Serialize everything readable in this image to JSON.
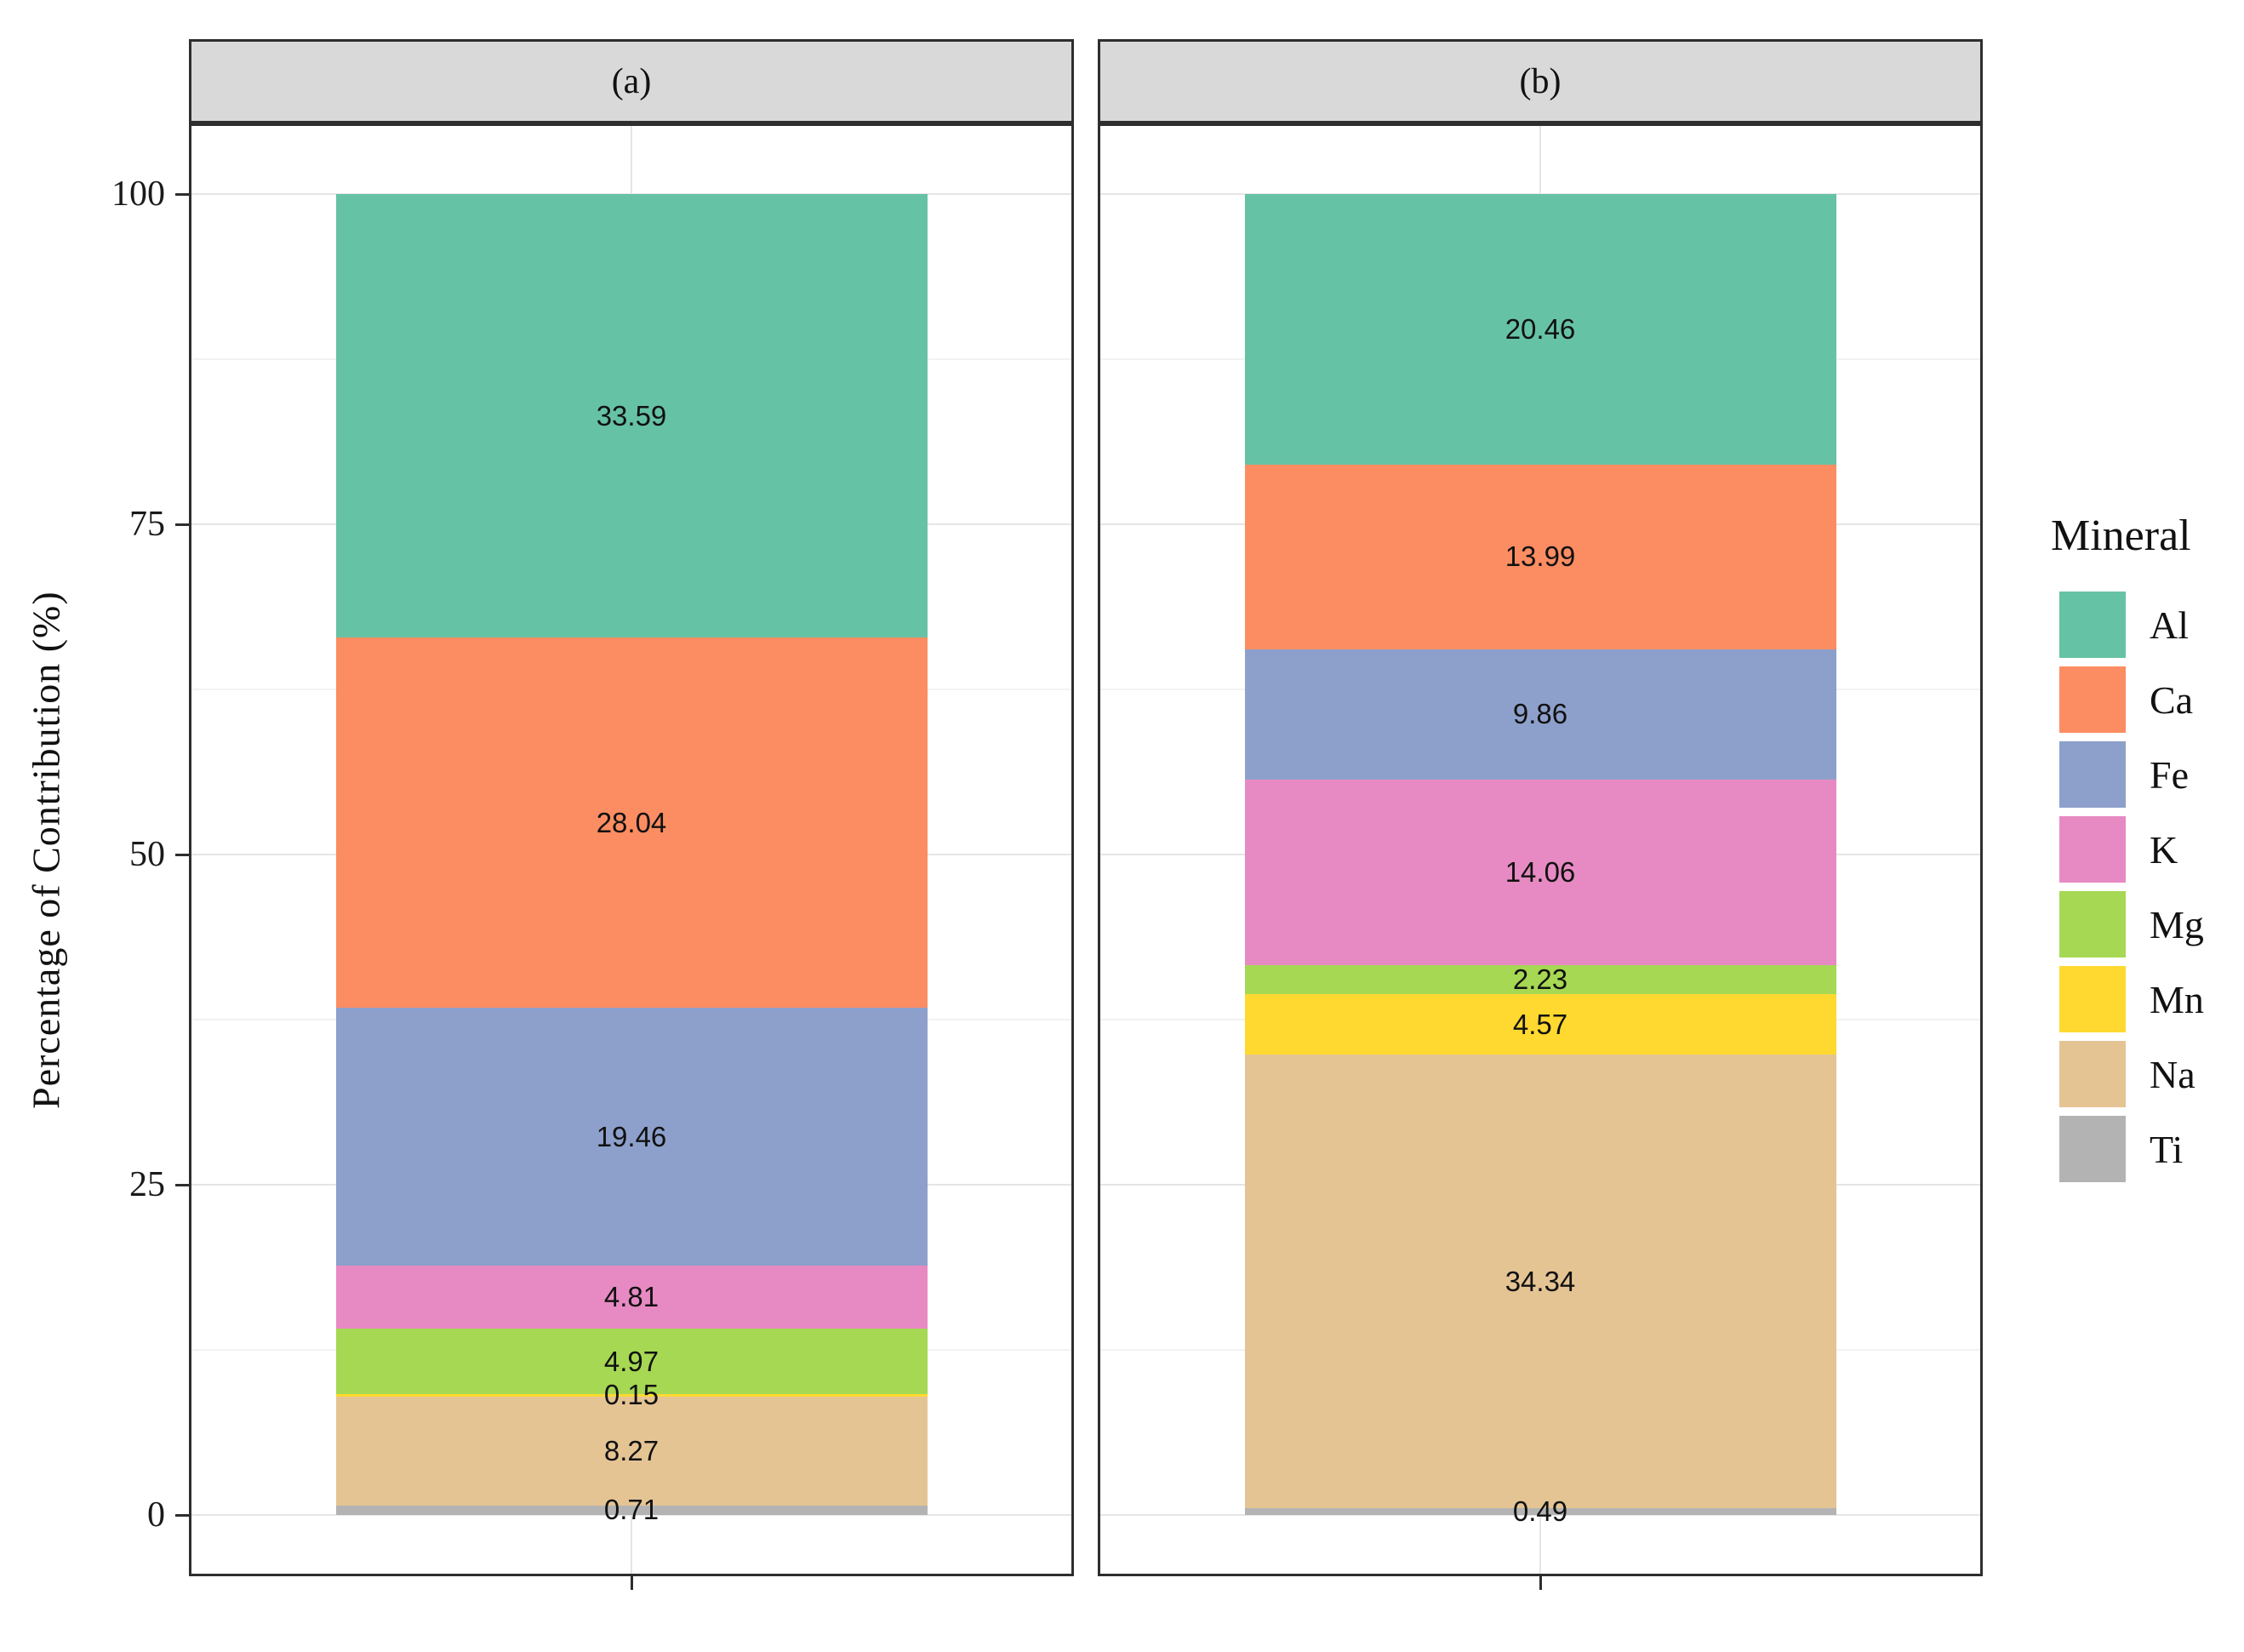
{
  "chart_data": {
    "type": "bar",
    "subtype": "stacked_percent_faceted",
    "title": "",
    "xlabel": "",
    "ylabel": "Percentage of Contribution (%)",
    "ylim": [
      0,
      100
    ],
    "y_ticks": [
      100,
      75,
      50,
      25,
      0
    ],
    "y_tick_labels": [
      "100",
      "75",
      "50",
      "25",
      "0"
    ],
    "y_minor_gridlines": [
      12.5,
      37.5,
      62.5,
      87.5
    ],
    "grid": "major and minor horizontal gridlines, one vertical gridline per facet center",
    "legend_position": "right",
    "stack_order_top_to_bottom": [
      "Al",
      "Ca",
      "Fe",
      "K",
      "Mg",
      "Mn",
      "Na",
      "Ti"
    ],
    "facets": [
      {
        "label": "(a)",
        "segments": [
          {
            "mineral": "Al",
            "value": 33.59,
            "text": "33.59"
          },
          {
            "mineral": "Ca",
            "value": 28.04,
            "text": "28.04"
          },
          {
            "mineral": "Fe",
            "value": 19.46,
            "text": "19.46"
          },
          {
            "mineral": "K",
            "value": 4.81,
            "text": "4.81"
          },
          {
            "mineral": "Mg",
            "value": 4.97,
            "text": "4.97"
          },
          {
            "mineral": "Mn",
            "value": 0.15,
            "text": "0.15"
          },
          {
            "mineral": "Na",
            "value": 8.27,
            "text": "8.27"
          },
          {
            "mineral": "Ti",
            "value": 0.71,
            "text": "0.71"
          }
        ]
      },
      {
        "label": "(b)",
        "segments": [
          {
            "mineral": "Al",
            "value": 20.46,
            "text": "20.46"
          },
          {
            "mineral": "Ca",
            "value": 13.99,
            "text": "13.99"
          },
          {
            "mineral": "Fe",
            "value": 9.86,
            "text": "9.86"
          },
          {
            "mineral": "K",
            "value": 14.06,
            "text": "14.06"
          },
          {
            "mineral": "Mg",
            "value": 2.23,
            "text": "2.23"
          },
          {
            "mineral": "Mn",
            "value": 4.57,
            "text": "4.57"
          },
          {
            "mineral": "Na",
            "value": 34.34,
            "text": "34.34"
          },
          {
            "mineral": "Ti",
            "value": 0.49,
            "text": "0.49"
          }
        ]
      }
    ],
    "legend": {
      "title": "Mineral",
      "items": [
        {
          "label": "Al",
          "color": "#66c2a5"
        },
        {
          "label": "Ca",
          "color": "#fc8d62"
        },
        {
          "label": "Fe",
          "color": "#8da0cb"
        },
        {
          "label": "K",
          "color": "#e78ac3"
        },
        {
          "label": "Mg",
          "color": "#a6d854"
        },
        {
          "label": "Mn",
          "color": "#ffd92f"
        },
        {
          "label": "Na",
          "color": "#e5c494"
        },
        {
          "label": "Ti",
          "color": "#b3b3b3"
        }
      ]
    },
    "series_colors": {
      "Al": "#66c2a5",
      "Ca": "#fc8d62",
      "Fe": "#8da0cb",
      "K": "#e78ac3",
      "Mg": "#a6d854",
      "Mn": "#ffd92f",
      "Na": "#e5c494",
      "Ti": "#b3b3b3"
    },
    "style": {
      "strip_fill": "#d9d9d9",
      "panel_border": "#2e2e2e",
      "grid_major": "#e5e5e5",
      "grid_minor": "#f2f2f2",
      "bar_separator": "#ffffff",
      "label_color": "#111111"
    }
  }
}
